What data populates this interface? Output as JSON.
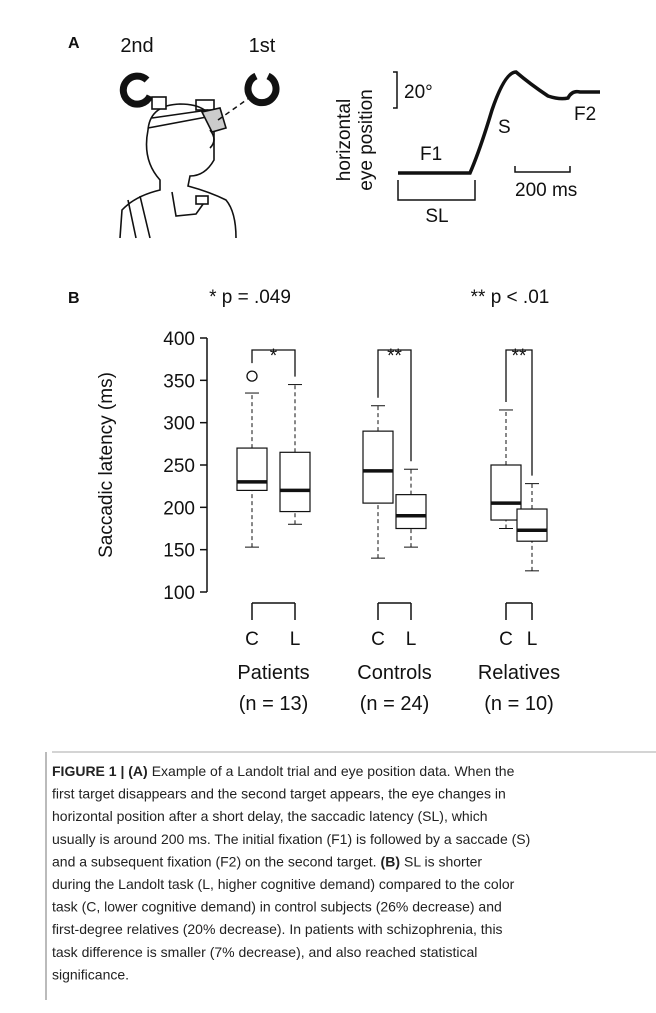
{
  "panel_a": {
    "label": "A",
    "targets": [
      "2nd",
      "1st"
    ],
    "y_label": [
      "horizontal",
      "eye position"
    ],
    "scale_y": "20°",
    "scale_x": "200 ms",
    "trace_labels": {
      "f1": "F1",
      "s": "S",
      "f2": "F2",
      "sl": "SL"
    }
  },
  "chart_data": {
    "type": "box",
    "label": "B",
    "annotations": [
      "* p = .049",
      "** p < .01"
    ],
    "ylabel": "Saccadic latency (ms)",
    "ylim": [
      100,
      400
    ],
    "yticks": [
      100,
      150,
      200,
      250,
      300,
      350,
      400
    ],
    "groups": [
      {
        "name": "Patients",
        "n": "(n = 13)",
        "sig": "*",
        "boxes": [
          {
            "label": "C",
            "whislo": 153,
            "q1": 220,
            "med": 230,
            "q3": 270,
            "whishi": 335,
            "fliers": [
              355
            ]
          },
          {
            "label": "L",
            "whislo": 180,
            "q1": 195,
            "med": 220,
            "q3": 265,
            "whishi": 345,
            "fliers": []
          }
        ]
      },
      {
        "name": "Controls",
        "n": "(n = 24)",
        "sig": "**",
        "boxes": [
          {
            "label": "C",
            "whislo": 140,
            "q1": 205,
            "med": 243,
            "q3": 290,
            "whishi": 320,
            "fliers": []
          },
          {
            "label": "L",
            "whislo": 153,
            "q1": 175,
            "med": 190,
            "q3": 215,
            "whishi": 245,
            "fliers": []
          }
        ]
      },
      {
        "name": "Relatives",
        "n": "(n = 10)",
        "sig": "**",
        "boxes": [
          {
            "label": "C",
            "whislo": 175,
            "q1": 185,
            "med": 205,
            "q3": 250,
            "whishi": 315,
            "fliers": []
          },
          {
            "label": "L",
            "whislo": 125,
            "q1": 160,
            "med": 173,
            "q3": 198,
            "whishi": 228,
            "fliers": []
          }
        ]
      }
    ]
  },
  "caption": {
    "lines": [
      [
        {
          "text": "FIGURE 1 | (A)",
          "bold": true
        },
        {
          "text": "Example of a Landolt trial and eye position data. When the"
        }
      ],
      [
        {
          "text": "first target disappears and the second target appears, the eye changes in"
        }
      ],
      [
        {
          "text": "horizontal position after a short delay, the saccadic latency (SL), which"
        }
      ],
      [
        {
          "text": "usually is around 200 ms. The initial fixation (F1) is followed by a saccade (S)"
        }
      ],
      [
        {
          "text": "and a subsequent fixation (F2) on the second target."
        },
        {
          "text": "(B)",
          "bold": true
        },
        {
          "text": "SL is shorter"
        }
      ],
      [
        {
          "text": "during the Landolt task (L, higher cognitive demand) compared to the color"
        }
      ],
      [
        {
          "text": "task (C, lower cognitive demand) in control subjects (26% decrease) and"
        }
      ],
      [
        {
          "text": "first-degree relatives (20% decrease). In patients with schizophrenia, this"
        }
      ],
      [
        {
          "text": "task difference is smaller (7% decrease), and also reached statistical"
        }
      ],
      [
        {
          "text": "significance."
        }
      ]
    ]
  }
}
